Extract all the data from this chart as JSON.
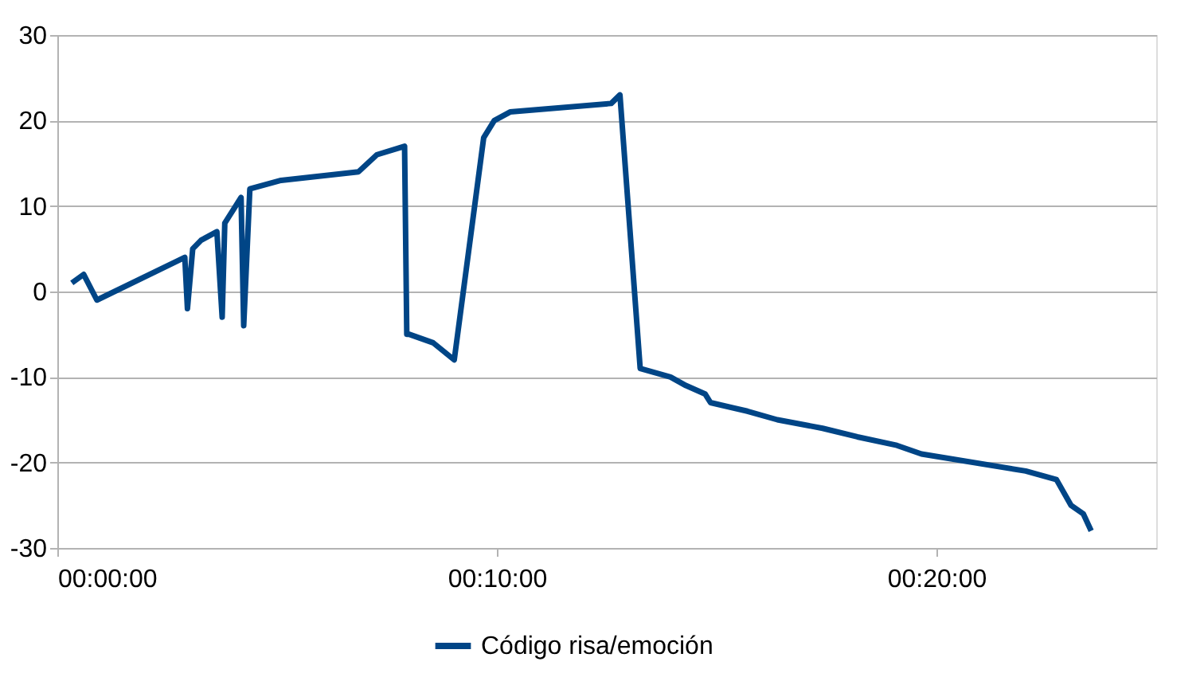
{
  "chart_data": {
    "type": "line",
    "x": [
      0.33,
      0.6,
      0.9,
      2.9,
      2.96,
      3.08,
      3.27,
      3.63,
      3.75,
      3.81,
      4.18,
      4.24,
      4.38,
      5.09,
      6.85,
      7.27,
      7.9,
      7.95,
      8.0,
      8.55,
      9.03,
      9.7,
      9.82,
      9.94,
      10.3,
      12.6,
      12.8,
      13.26,
      13.95,
      14.3,
      14.74,
      14.86,
      15.7,
      16.38,
      17.41,
      18.2,
      19.1,
      19.66,
      22.03,
      22.73,
      23.06,
      23.34,
      23.52
    ],
    "series": [
      {
        "name": "Código risa/emoción",
        "color": "#004586",
        "values": [
          1,
          2,
          -1,
          4,
          -2,
          5,
          6,
          7,
          -3,
          8,
          11,
          -4,
          12,
          13,
          14,
          16,
          17,
          -5,
          -5,
          -6,
          -8,
          18,
          19,
          20,
          21,
          22,
          23,
          -9,
          -10,
          -11,
          -12,
          -13,
          -14,
          -15,
          -16,
          -17,
          -18,
          -19,
          -21,
          -22,
          -25,
          -26,
          -28
        ]
      }
    ],
    "xlim": [
      0,
      25
    ],
    "xticks": [
      {
        "value": 0,
        "label": "00:00:00"
      },
      {
        "value": 10,
        "label": "00:10:00"
      },
      {
        "value": 20,
        "label": "00:20:00"
      }
    ],
    "ylim": [
      -30,
      30
    ],
    "yticks": [
      -30,
      -20,
      -10,
      0,
      10,
      20,
      30
    ],
    "grid": "y",
    "legend": "bottom",
    "marker": "none",
    "line_style": "solid"
  }
}
